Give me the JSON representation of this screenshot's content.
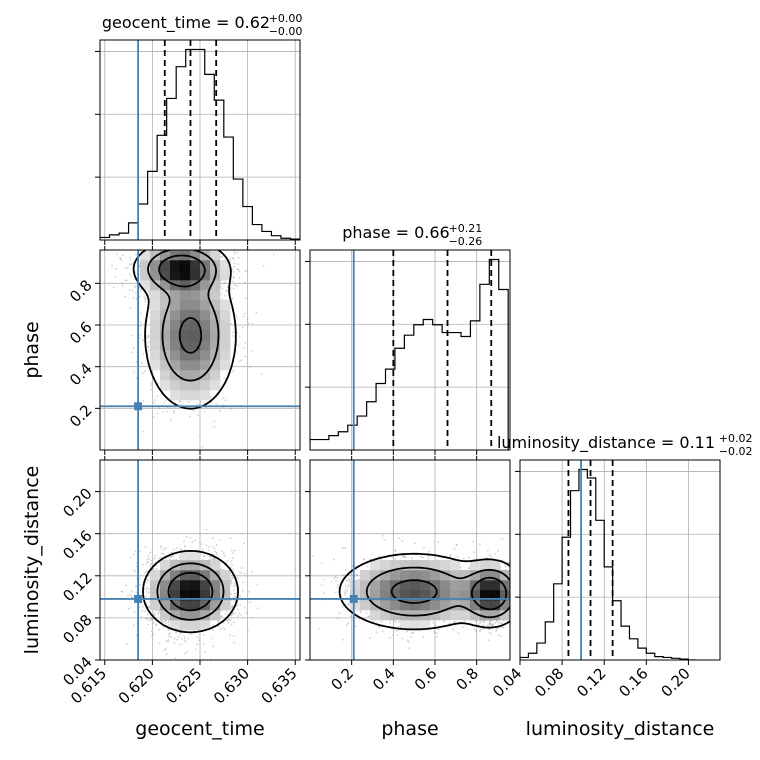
{
  "chart_data": {
    "type": "corner",
    "parameters": [
      "geocent_time",
      "phase",
      "luminosity_distance"
    ],
    "truths": {
      "geocent_time": 0.6185,
      "phase": 0.21,
      "luminosity_distance": 0.098
    },
    "titles": [
      {
        "param": "geocent_time",
        "main": "geocent_time = 0.62",
        "sup": "+0.00",
        "sub": "−0.00"
      },
      {
        "param": "phase",
        "main": "phase = 0.66",
        "sup": "+0.21",
        "sub": "−0.26"
      },
      {
        "param": "luminosity_distance",
        "main": "luminosity_distance = 0.11",
        "sup": "+0.02",
        "sub": "−0.02"
      }
    ],
    "axes": {
      "geocent_time": {
        "range": [
          0.6145,
          0.6355
        ],
        "ticks": [
          0.615,
          0.62,
          0.625,
          0.63,
          0.635
        ],
        "tick_labels": [
          "0.615",
          "0.620",
          "0.625",
          "0.630",
          "0.635"
        ],
        "label": "geocent_time"
      },
      "phase": {
        "range": [
          0.0,
          0.96
        ],
        "ticks": [
          0.2,
          0.4,
          0.6,
          0.8
        ],
        "tick_labels": [
          "0.2",
          "0.4",
          "0.6",
          "0.8"
        ],
        "label": "phase"
      },
      "luminosity_distance": {
        "range": [
          0.04,
          0.23
        ],
        "ticks": [
          0.04,
          0.08,
          0.12,
          0.16,
          0.2
        ],
        "tick_labels": [
          "0.04",
          "0.08",
          "0.12",
          "0.16",
          "0.20"
        ],
        "label": "luminosity_distance"
      }
    },
    "histograms": {
      "geocent_time": {
        "edges": [
          0.6145,
          0.6155,
          0.6165,
          0.6175,
          0.6185,
          0.6195,
          0.6205,
          0.6215,
          0.6225,
          0.6235,
          0.6245,
          0.6255,
          0.6265,
          0.6275,
          0.6285,
          0.6295,
          0.6305,
          0.6315,
          0.6325,
          0.6335,
          0.6345,
          0.6355
        ],
        "counts": [
          3,
          6,
          8,
          20,
          42,
          80,
          122,
          165,
          202,
          222,
          222,
          193,
          163,
          120,
          71,
          39,
          18,
          10,
          5,
          2,
          1
        ],
        "quantiles": [
          0.6213,
          0.624,
          0.6267
        ]
      },
      "phase": {
        "edges": [
          0.0,
          0.0453,
          0.0906,
          0.1359,
          0.1812,
          0.2265,
          0.2718,
          0.3171,
          0.3624,
          0.4077,
          0.453,
          0.4983,
          0.5436,
          0.5889,
          0.6342,
          0.6795,
          0.7248,
          0.7701,
          0.8154,
          0.8607,
          0.906,
          0.9513
        ],
        "counts": [
          8,
          8,
          11,
          14,
          19,
          26,
          37,
          51,
          62,
          78,
          88,
          96,
          100,
          96,
          90,
          90,
          87,
          99,
          127,
          146,
          123
        ],
        "quantiles": [
          0.4,
          0.66,
          0.87
        ]
      },
      "luminosity_distance": {
        "edges": [
          0.04,
          0.048,
          0.056,
          0.064,
          0.072,
          0.08,
          0.088,
          0.096,
          0.104,
          0.112,
          0.12,
          0.128,
          0.136,
          0.144,
          0.152,
          0.16,
          0.168,
          0.176,
          0.184,
          0.192,
          0.2,
          0.208
        ],
        "counts": [
          3,
          8,
          20,
          45,
          90,
          145,
          200,
          225,
          215,
          165,
          110,
          70,
          40,
          25,
          14,
          8,
          4,
          3,
          2,
          1,
          0
        ],
        "quantiles": [
          0.086,
          0.107,
          0.128
        ]
      }
    },
    "density_2d": [
      {
        "x": "geocent_time",
        "y": "phase",
        "modes": [
          {
            "x": 0.623,
            "y": 0.87,
            "sx": 0.0022,
            "sy": 0.06,
            "w": 1.0
          },
          {
            "x": 0.624,
            "y": 0.55,
            "sx": 0.0023,
            "sy": 0.17,
            "w": 0.7
          }
        ]
      },
      {
        "x": "geocent_time",
        "y": "luminosity_distance",
        "modes": [
          {
            "x": 0.624,
            "y": 0.105,
            "sx": 0.0022,
            "sy": 0.017,
            "w": 1.0
          }
        ]
      },
      {
        "x": "phase",
        "y": "luminosity_distance",
        "modes": [
          {
            "x": 0.87,
            "y": 0.103,
            "sx": 0.07,
            "sy": 0.014,
            "w": 1.0
          },
          {
            "x": 0.5,
            "y": 0.105,
            "sx": 0.17,
            "sy": 0.017,
            "w": 0.75
          }
        ]
      }
    ],
    "grid": true,
    "legend": "none"
  }
}
